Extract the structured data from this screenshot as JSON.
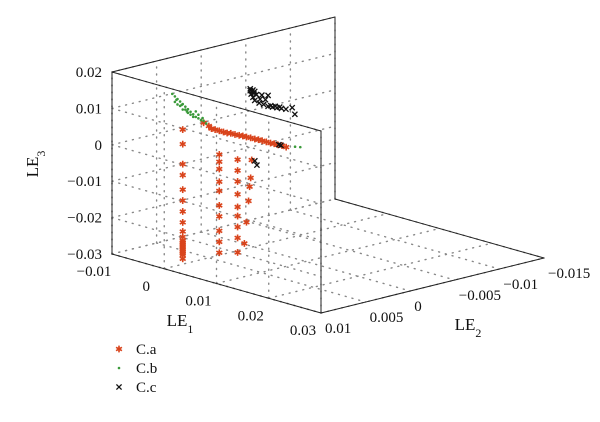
{
  "chart_data": {
    "type": "scatter",
    "projection": "3d",
    "axes": {
      "x": {
        "label": "LE",
        "subscript": "1",
        "range": [
          -0.01,
          0.03
        ],
        "ticks": [
          "−0.01",
          "0",
          "0.01",
          "0.02",
          "0.03"
        ]
      },
      "y": {
        "label": "LE",
        "subscript": "2",
        "range": [
          -0.015,
          0.01
        ],
        "ticks": [
          "−0.015",
          "−0.01",
          "−0.005",
          "0",
          "0.005",
          "0.01"
        ]
      },
      "z": {
        "label": "LE",
        "subscript": "3",
        "range": [
          -0.03,
          0.02
        ],
        "ticks": [
          "−0.03",
          "−0.02",
          "−0.01",
          "0",
          "0.01",
          "0.02"
        ]
      }
    },
    "grid": true,
    "legend_position": "bottom-left",
    "colors": {
      "C.a": "#d9441c",
      "C.b": "#3a9a3a",
      "C.c": "#111111"
    },
    "series": [
      {
        "name": "C.a",
        "marker": "asterisk",
        "points": [
          [
            0.006,
            0.0091,
            0.012
          ],
          [
            0.007,
            0.0091,
            0.0115
          ],
          [
            0.0075,
            0.0091,
            0.011
          ],
          [
            0.0082,
            0.0091,
            0.011
          ],
          [
            0.009,
            0.0091,
            0.011
          ],
          [
            0.0098,
            0.0091,
            0.011
          ],
          [
            0.0105,
            0.0091,
            0.011
          ],
          [
            0.0112,
            0.0091,
            0.0112
          ],
          [
            0.012,
            0.0091,
            0.0112
          ],
          [
            0.0128,
            0.0091,
            0.0113
          ],
          [
            0.0135,
            0.0091,
            0.0114
          ],
          [
            0.0142,
            0.0091,
            0.0114
          ],
          [
            0.015,
            0.0091,
            0.0115
          ],
          [
            0.0158,
            0.0091,
            0.0115
          ],
          [
            0.0165,
            0.0091,
            0.0116
          ],
          [
            0.0172,
            0.0091,
            0.0116
          ],
          [
            0.018,
            0.0091,
            0.0116
          ],
          [
            0.0188,
            0.0091,
            0.0116
          ],
          [
            0.0195,
            0.0091,
            0.0117
          ],
          [
            0.0202,
            0.0091,
            0.0117
          ],
          [
            0.021,
            0.0091,
            0.0118
          ],
          [
            0.0218,
            0.0091,
            0.0117
          ],
          [
            0.002,
            0.0091,
            0.0085
          ],
          [
            0.002,
            0.0091,
            0.0045
          ],
          [
            0.002,
            0.0091,
            -0.001
          ],
          [
            0.002,
            0.0091,
            -0.004
          ],
          [
            0.002,
            0.0091,
            -0.008
          ],
          [
            0.002,
            0.0091,
            -0.011
          ],
          [
            0.002,
            0.0091,
            -0.014
          ],
          [
            0.002,
            0.0091,
            -0.017
          ],
          [
            0.002,
            0.0091,
            -0.0195
          ],
          [
            0.002,
            0.0091,
            -0.021
          ],
          [
            0.002,
            0.0091,
            -0.022
          ],
          [
            0.002,
            0.0091,
            -0.0225
          ],
          [
            0.002,
            0.0091,
            -0.023
          ],
          [
            0.002,
            0.0091,
            -0.0235
          ],
          [
            0.002,
            0.0091,
            -0.024
          ],
          [
            0.002,
            0.0091,
            -0.0245
          ],
          [
            0.002,
            0.0091,
            -0.025
          ],
          [
            0.002,
            0.0091,
            -0.0255
          ],
          [
            0.002,
            0.0091,
            -0.026
          ],
          [
            0.002,
            0.0091,
            -0.027
          ],
          [
            0.009,
            0.0091,
            0.0045
          ],
          [
            0.009,
            0.0091,
            0.0025
          ],
          [
            0.009,
            0.0091,
            0.0005
          ],
          [
            0.009,
            0.0091,
            -0.003
          ],
          [
            0.009,
            0.0091,
            -0.0055
          ],
          [
            0.009,
            0.0091,
            -0.0095
          ],
          [
            0.009,
            0.0091,
            -0.0125
          ],
          [
            0.009,
            0.0091,
            -0.0165
          ],
          [
            0.009,
            0.0091,
            -0.0195
          ],
          [
            0.009,
            0.0091,
            -0.0225
          ],
          [
            0.0125,
            0.0091,
            0.0045
          ],
          [
            0.0125,
            0.0091,
            0.0015
          ],
          [
            0.0125,
            0.0091,
            -0.0015
          ],
          [
            0.0125,
            0.0091,
            -0.005
          ],
          [
            0.0125,
            0.0091,
            -0.0085
          ],
          [
            0.0125,
            0.0091,
            -0.011
          ],
          [
            0.0125,
            0.0091,
            -0.014
          ],
          [
            0.0125,
            0.0091,
            -0.017
          ],
          [
            0.0125,
            0.0091,
            -0.021
          ],
          [
            0.0152,
            0.0091,
            0.0055
          ],
          [
            0.015,
            0.0091,
            0.0005
          ],
          [
            0.0148,
            0.0091,
            -0.002
          ],
          [
            0.0146,
            0.0091,
            -0.006
          ],
          [
            0.0142,
            0.0091,
            -0.012
          ],
          [
            0.0138,
            0.0091,
            -0.018
          ]
        ]
      },
      {
        "name": "C.b",
        "marker": "dot",
        "points": [
          [
            0.0,
            0.0091,
            0.0175
          ],
          [
            0.0005,
            0.0091,
            0.017
          ],
          [
            0.001,
            0.0091,
            0.0165
          ],
          [
            0.0015,
            0.0091,
            0.016
          ],
          [
            0.002,
            0.0091,
            0.0155
          ],
          [
            0.0025,
            0.0091,
            0.015
          ],
          [
            0.003,
            0.0091,
            0.0145
          ],
          [
            0.0035,
            0.0091,
            0.014
          ],
          [
            0.004,
            0.0091,
            0.0135
          ],
          [
            0.0045,
            0.0091,
            0.013
          ],
          [
            0.005,
            0.0091,
            0.0128
          ],
          [
            0.0055,
            0.0091,
            0.0125
          ],
          [
            0.001,
            0.0091,
            0.015
          ],
          [
            0.002,
            0.0091,
            0.014
          ],
          [
            0.003,
            0.0091,
            0.0135
          ],
          [
            0.004,
            0.0091,
            0.0128
          ],
          [
            0.0005,
            0.0091,
            0.0155
          ],
          [
            0.0015,
            0.0091,
            0.0148
          ],
          [
            0.0025,
            0.0091,
            0.0142
          ],
          [
            0.0035,
            0.0091,
            0.0132
          ],
          [
            0.005,
            0.0091,
            0.0138
          ],
          [
            0.0045,
            0.0091,
            0.0145
          ],
          [
            0.0008,
            0.0091,
            0.0162
          ],
          [
            0.0018,
            0.0091,
            0.0152
          ],
          [
            0.0028,
            0.0091,
            0.0138
          ],
          [
            0.006,
            0.0091,
            0.0125
          ],
          [
            0.0065,
            0.0091,
            0.012
          ],
          [
            0.0058,
            0.0091,
            0.0132
          ],
          [
            0.0235,
            0.0091,
            0.0125
          ],
          [
            0.0245,
            0.0091,
            0.0128
          ]
        ]
      },
      {
        "name": "C.c",
        "marker": "cross",
        "points": [
          [
            0.0204,
            0.0091,
            0.0118
          ],
          [
            0.0208,
            0.0091,
            0.0118
          ],
          [
            0.0158,
            0.0091,
            0.0055
          ],
          [
            0.0162,
            0.0091,
            0.0045
          ],
          [
            -0.01,
            -0.0105,
            -0.004
          ],
          [
            -0.01,
            -0.0102,
            -0.002
          ],
          [
            -0.01,
            -0.0095,
            -0.002
          ],
          [
            -0.01,
            -0.009,
            -0.0015
          ],
          [
            -0.01,
            -0.0085,
            -0.001
          ],
          [
            -0.01,
            -0.008,
            -0.0005
          ],
          [
            -0.01,
            -0.0075,
            0.0
          ],
          [
            -0.01,
            -0.007,
            0.0008
          ],
          [
            -0.01,
            -0.0065,
            0.0015
          ],
          [
            -0.01,
            -0.006,
            0.0025
          ],
          [
            -0.01,
            -0.0058,
            0.0035
          ],
          [
            -0.01,
            -0.0056,
            0.0045
          ],
          [
            -0.01,
            -0.0055,
            0.0055
          ],
          [
            -0.01,
            -0.0055,
            0.006
          ],
          [
            -0.01,
            -0.0075,
            0.003
          ],
          [
            -0.01,
            -0.0072,
            0.002
          ],
          [
            -0.01,
            -0.0068,
            0.0035
          ],
          [
            -0.01,
            -0.0062,
            0.004
          ],
          [
            -0.01,
            -0.006,
            0.005
          ],
          [
            -0.01,
            -0.0058,
            0.0055
          ],
          [
            -0.01,
            -0.0057,
            0.0052
          ],
          [
            -0.01,
            -0.0059,
            0.0045
          ],
          [
            -0.01,
            -0.0066,
            0.0025
          ],
          [
            -0.01,
            -0.0078,
            0.0
          ],
          [
            -0.01,
            -0.0083,
            -0.0005
          ],
          [
            -0.01,
            -0.0088,
            -0.001
          ]
        ]
      }
    ]
  }
}
